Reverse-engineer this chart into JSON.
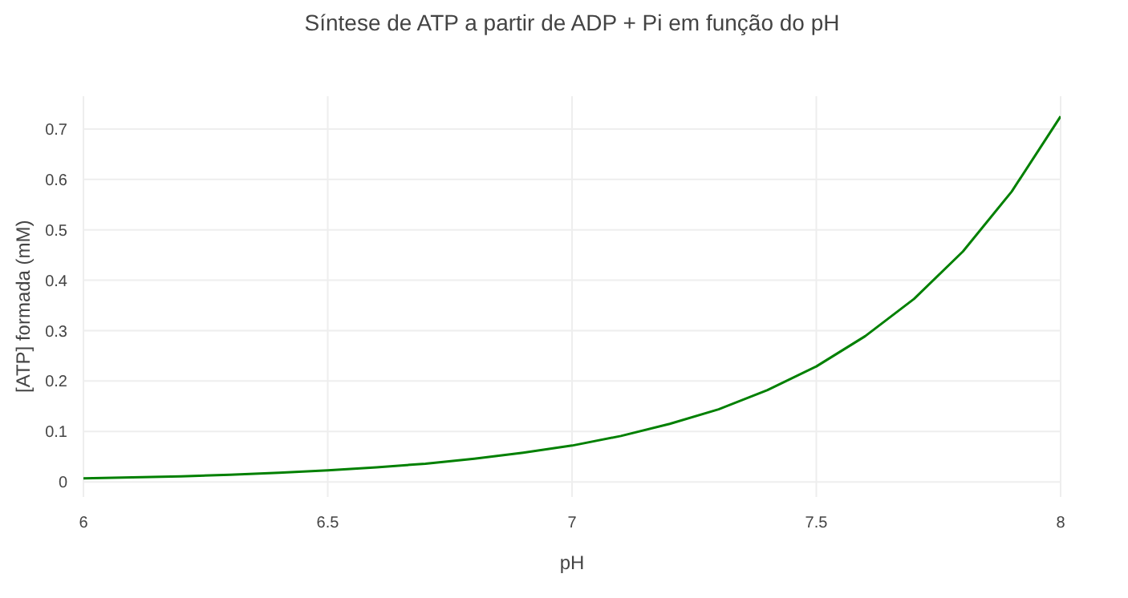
{
  "chart_data": {
    "type": "line",
    "title": "Síntese de ATP a partir de ADP + Pi em função do pH",
    "xlabel": "pH",
    "ylabel": "[ATP] formada (mM)",
    "x": [
      6,
      6.1,
      6.2,
      6.3,
      6.4,
      6.5,
      6.6,
      6.7,
      6.8,
      6.9,
      7,
      7.1,
      7.2,
      7.3,
      7.4,
      7.5,
      7.6,
      7.7,
      7.8,
      7.9,
      8
    ],
    "series": [
      {
        "color": "#008000",
        "values": [
          0.007,
          0.009,
          0.011,
          0.014,
          0.018,
          0.023,
          0.029,
          0.036,
          0.046,
          0.058,
          0.072,
          0.091,
          0.115,
          0.144,
          0.182,
          0.229,
          0.289,
          0.363,
          0.457,
          0.576,
          0.725
        ]
      }
    ],
    "xlim": [
      6,
      8
    ],
    "xticks": [
      6,
      6.5,
      7,
      7.5,
      8
    ],
    "ylim": [
      -0.03,
      0.765
    ],
    "yticks": [
      0,
      0.1,
      0.2,
      0.3,
      0.4,
      0.5,
      0.6,
      0.7
    ],
    "grid": true,
    "legend": false,
    "marker": "none",
    "line_style": "solid"
  }
}
